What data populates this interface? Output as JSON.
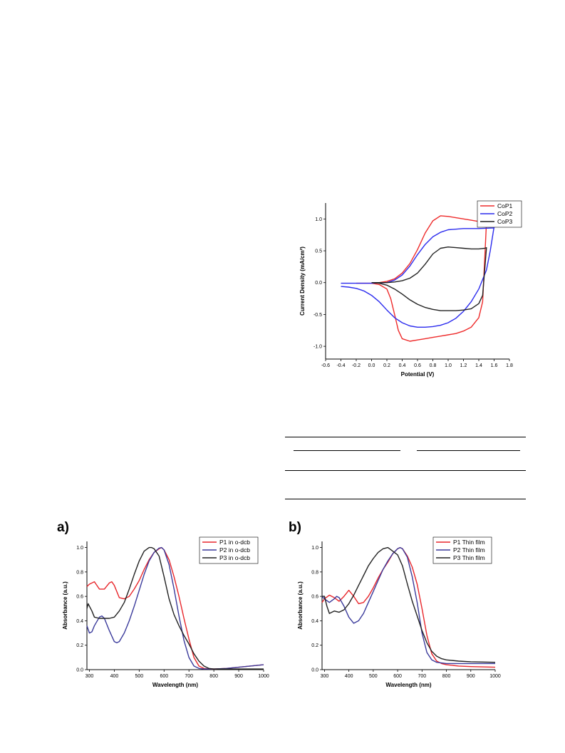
{
  "chart_data": [
    {
      "type": "line",
      "title": "",
      "xlabel": "Potential (V)",
      "ylabel": "Current Density (mA/cm²)",
      "xlim": [
        -0.6,
        1.8
      ],
      "ylim": [
        -1.2,
        1.25
      ],
      "xticks": [
        -0.6,
        -0.4,
        -0.2,
        0.0,
        0.2,
        0.4,
        0.6,
        0.8,
        1.0,
        1.2,
        1.4,
        1.6,
        1.8
      ],
      "yticks": [
        -1.0,
        -0.5,
        0.0,
        0.5,
        1.0
      ],
      "legend_position": "top-right",
      "series": [
        {
          "name": "CoP1",
          "color": "#ee2b2b",
          "x": [
            -0.2,
            0.0,
            0.1,
            0.2,
            0.3,
            0.4,
            0.5,
            0.6,
            0.7,
            0.8,
            0.9,
            1.0,
            1.1,
            1.2,
            1.3,
            1.4,
            1.48,
            1.5,
            1.45,
            1.4,
            1.3,
            1.2,
            1.1,
            1.0,
            0.9,
            0.8,
            0.7,
            0.6,
            0.5,
            0.4,
            0.35,
            0.3,
            0.25,
            0.2,
            0.1,
            0.0,
            -0.2
          ],
          "y": [
            -0.01,
            -0.01,
            0.0,
            0.02,
            0.06,
            0.15,
            0.3,
            0.52,
            0.78,
            0.97,
            1.05,
            1.04,
            1.02,
            1.0,
            0.98,
            0.96,
            0.97,
            0.95,
            -0.3,
            -0.55,
            -0.7,
            -0.76,
            -0.8,
            -0.82,
            -0.84,
            -0.86,
            -0.88,
            -0.9,
            -0.92,
            -0.88,
            -0.75,
            -0.5,
            -0.25,
            -0.1,
            -0.03,
            -0.01,
            -0.01
          ]
        },
        {
          "name": "CoP2",
          "color": "#2b2bee",
          "x": [
            -0.4,
            -0.2,
            0.0,
            0.2,
            0.3,
            0.4,
            0.5,
            0.6,
            0.7,
            0.8,
            0.9,
            1.0,
            1.2,
            1.4,
            1.6,
            1.6,
            1.55,
            1.5,
            1.4,
            1.3,
            1.2,
            1.1,
            1.0,
            0.9,
            0.8,
            0.7,
            0.6,
            0.5,
            0.4,
            0.3,
            0.2,
            0.1,
            0.0,
            -0.1,
            -0.2,
            -0.3,
            -0.4
          ],
          "y": [
            -0.01,
            -0.01,
            -0.01,
            0.0,
            0.04,
            0.12,
            0.26,
            0.44,
            0.6,
            0.72,
            0.79,
            0.83,
            0.85,
            0.85,
            0.86,
            0.88,
            0.5,
            0.2,
            -0.1,
            -0.3,
            -0.45,
            -0.56,
            -0.63,
            -0.67,
            -0.69,
            -0.7,
            -0.7,
            -0.68,
            -0.63,
            -0.55,
            -0.43,
            -0.3,
            -0.2,
            -0.13,
            -0.09,
            -0.07,
            -0.06
          ]
        },
        {
          "name": "CoP3",
          "color": "#222222",
          "x": [
            0.0,
            0.2,
            0.3,
            0.4,
            0.5,
            0.6,
            0.7,
            0.8,
            0.9,
            1.0,
            1.1,
            1.2,
            1.3,
            1.4,
            1.48,
            1.5,
            1.45,
            1.4,
            1.3,
            1.2,
            1.1,
            1.0,
            0.9,
            0.8,
            0.7,
            0.6,
            0.5,
            0.4,
            0.3,
            0.2,
            0.1,
            0.0
          ],
          "y": [
            0.0,
            0.0,
            0.01,
            0.03,
            0.07,
            0.15,
            0.29,
            0.45,
            0.54,
            0.56,
            0.55,
            0.54,
            0.53,
            0.53,
            0.54,
            0.55,
            -0.2,
            -0.33,
            -0.41,
            -0.43,
            -0.44,
            -0.44,
            -0.44,
            -0.42,
            -0.39,
            -0.34,
            -0.27,
            -0.18,
            -0.1,
            -0.04,
            -0.01,
            0.0
          ]
        }
      ]
    },
    {
      "type": "line",
      "title": "",
      "panel_label": "a)",
      "xlabel": "Wavelength (nm)",
      "ylabel": "Absorbance (a.u.)",
      "xlim": [
        290,
        1000
      ],
      "ylim": [
        0.0,
        1.05
      ],
      "xticks": [
        300,
        400,
        500,
        600,
        700,
        800,
        900,
        1000
      ],
      "yticks": [
        0.0,
        0.2,
        0.4,
        0.6,
        0.8,
        1.0
      ],
      "legend_position": "top-right",
      "series": [
        {
          "name": "P1 in o-dcb",
          "color": "#e8262b",
          "x": [
            290,
            300,
            320,
            340,
            360,
            380,
            390,
            400,
            420,
            440,
            460,
            480,
            500,
            520,
            540,
            560,
            580,
            590,
            600,
            620,
            640,
            660,
            680,
            700,
            720,
            740,
            760,
            780,
            800,
            850,
            900,
            1000
          ],
          "y": [
            0.68,
            0.7,
            0.72,
            0.66,
            0.66,
            0.71,
            0.72,
            0.69,
            0.59,
            0.58,
            0.6,
            0.66,
            0.73,
            0.82,
            0.9,
            0.96,
            0.99,
            1.0,
            0.98,
            0.9,
            0.76,
            0.6,
            0.42,
            0.25,
            0.1,
            0.03,
            0.01,
            0.005,
            0.005,
            0.01,
            0.02,
            0.04
          ]
        },
        {
          "name": "P2 in o-dcb",
          "color": "#3a3a9b",
          "x": [
            290,
            300,
            310,
            320,
            340,
            350,
            360,
            380,
            400,
            410,
            420,
            440,
            460,
            480,
            500,
            520,
            540,
            560,
            580,
            590,
            600,
            620,
            640,
            660,
            680,
            700,
            720,
            740,
            760,
            800,
            850,
            900,
            1000
          ],
          "y": [
            0.36,
            0.3,
            0.31,
            0.36,
            0.43,
            0.44,
            0.42,
            0.32,
            0.23,
            0.22,
            0.23,
            0.3,
            0.4,
            0.52,
            0.65,
            0.78,
            0.89,
            0.96,
            0.995,
            1.0,
            0.98,
            0.86,
            0.66,
            0.44,
            0.24,
            0.1,
            0.03,
            0.01,
            0.005,
            0.005,
            0.01,
            0.02,
            0.04
          ]
        },
        {
          "name": "P3 in o-dcb",
          "color": "#222222",
          "x": [
            290,
            295,
            300,
            310,
            320,
            340,
            360,
            380,
            400,
            420,
            440,
            460,
            480,
            500,
            520,
            540,
            550,
            560,
            580,
            600,
            620,
            640,
            660,
            680,
            700,
            720,
            740,
            760,
            780,
            800,
            850,
            900,
            1000
          ],
          "y": [
            0.5,
            0.54,
            0.52,
            0.48,
            0.43,
            0.42,
            0.42,
            0.42,
            0.43,
            0.48,
            0.55,
            0.66,
            0.78,
            0.89,
            0.97,
            1.0,
            1.0,
            0.99,
            0.93,
            0.76,
            0.58,
            0.45,
            0.36,
            0.28,
            0.21,
            0.13,
            0.07,
            0.03,
            0.01,
            0.005,
            0.005,
            0.005,
            0.005
          ]
        }
      ]
    },
    {
      "type": "line",
      "title": "",
      "panel_label": "b)",
      "xlabel": "Wavelength (nm)",
      "ylabel": "Absorbance (a.u.)",
      "xlim": [
        290,
        1000
      ],
      "ylim": [
        0.0,
        1.05
      ],
      "xticks": [
        300,
        400,
        500,
        600,
        700,
        800,
        900,
        1000
      ],
      "yticks": [
        0.0,
        0.2,
        0.4,
        0.6,
        0.8,
        1.0
      ],
      "legend_position": "top-right",
      "series": [
        {
          "name": "P1 Thin film",
          "color": "#e8262b",
          "x": [
            290,
            300,
            320,
            340,
            360,
            380,
            400,
            420,
            440,
            460,
            480,
            500,
            520,
            540,
            560,
            580,
            600,
            610,
            620,
            640,
            660,
            680,
            700,
            720,
            740,
            760,
            780,
            800,
            850,
            900,
            1000
          ],
          "y": [
            0.55,
            0.58,
            0.61,
            0.59,
            0.56,
            0.6,
            0.65,
            0.6,
            0.54,
            0.55,
            0.6,
            0.67,
            0.75,
            0.82,
            0.88,
            0.95,
            0.99,
            1.0,
            0.99,
            0.93,
            0.84,
            0.7,
            0.5,
            0.28,
            0.13,
            0.07,
            0.05,
            0.04,
            0.03,
            0.025,
            0.02
          ]
        },
        {
          "name": "P2 Thin film",
          "color": "#3a3a9b",
          "x": [
            290,
            300,
            320,
            340,
            350,
            360,
            380,
            400,
            420,
            440,
            460,
            480,
            500,
            520,
            540,
            560,
            580,
            600,
            610,
            620,
            640,
            660,
            680,
            700,
            720,
            740,
            760,
            800,
            850,
            900,
            1000
          ],
          "y": [
            0.6,
            0.58,
            0.55,
            0.58,
            0.6,
            0.59,
            0.52,
            0.43,
            0.38,
            0.4,
            0.46,
            0.55,
            0.64,
            0.73,
            0.82,
            0.89,
            0.95,
            0.99,
            1.0,
            0.99,
            0.92,
            0.76,
            0.55,
            0.3,
            0.14,
            0.08,
            0.06,
            0.05,
            0.05,
            0.05,
            0.05
          ]
        },
        {
          "name": "P3 Thin film",
          "color": "#222222",
          "x": [
            290,
            300,
            310,
            320,
            340,
            360,
            380,
            400,
            420,
            440,
            460,
            480,
            500,
            520,
            540,
            560,
            580,
            600,
            620,
            640,
            660,
            680,
            700,
            720,
            740,
            760,
            780,
            800,
            850,
            900,
            1000
          ],
          "y": [
            0.6,
            0.6,
            0.52,
            0.46,
            0.48,
            0.47,
            0.49,
            0.54,
            0.61,
            0.69,
            0.77,
            0.85,
            0.91,
            0.96,
            0.99,
            1.0,
            0.97,
            0.94,
            0.85,
            0.7,
            0.56,
            0.44,
            0.32,
            0.22,
            0.15,
            0.11,
            0.09,
            0.08,
            0.07,
            0.065,
            0.06
          ]
        }
      ]
    }
  ]
}
